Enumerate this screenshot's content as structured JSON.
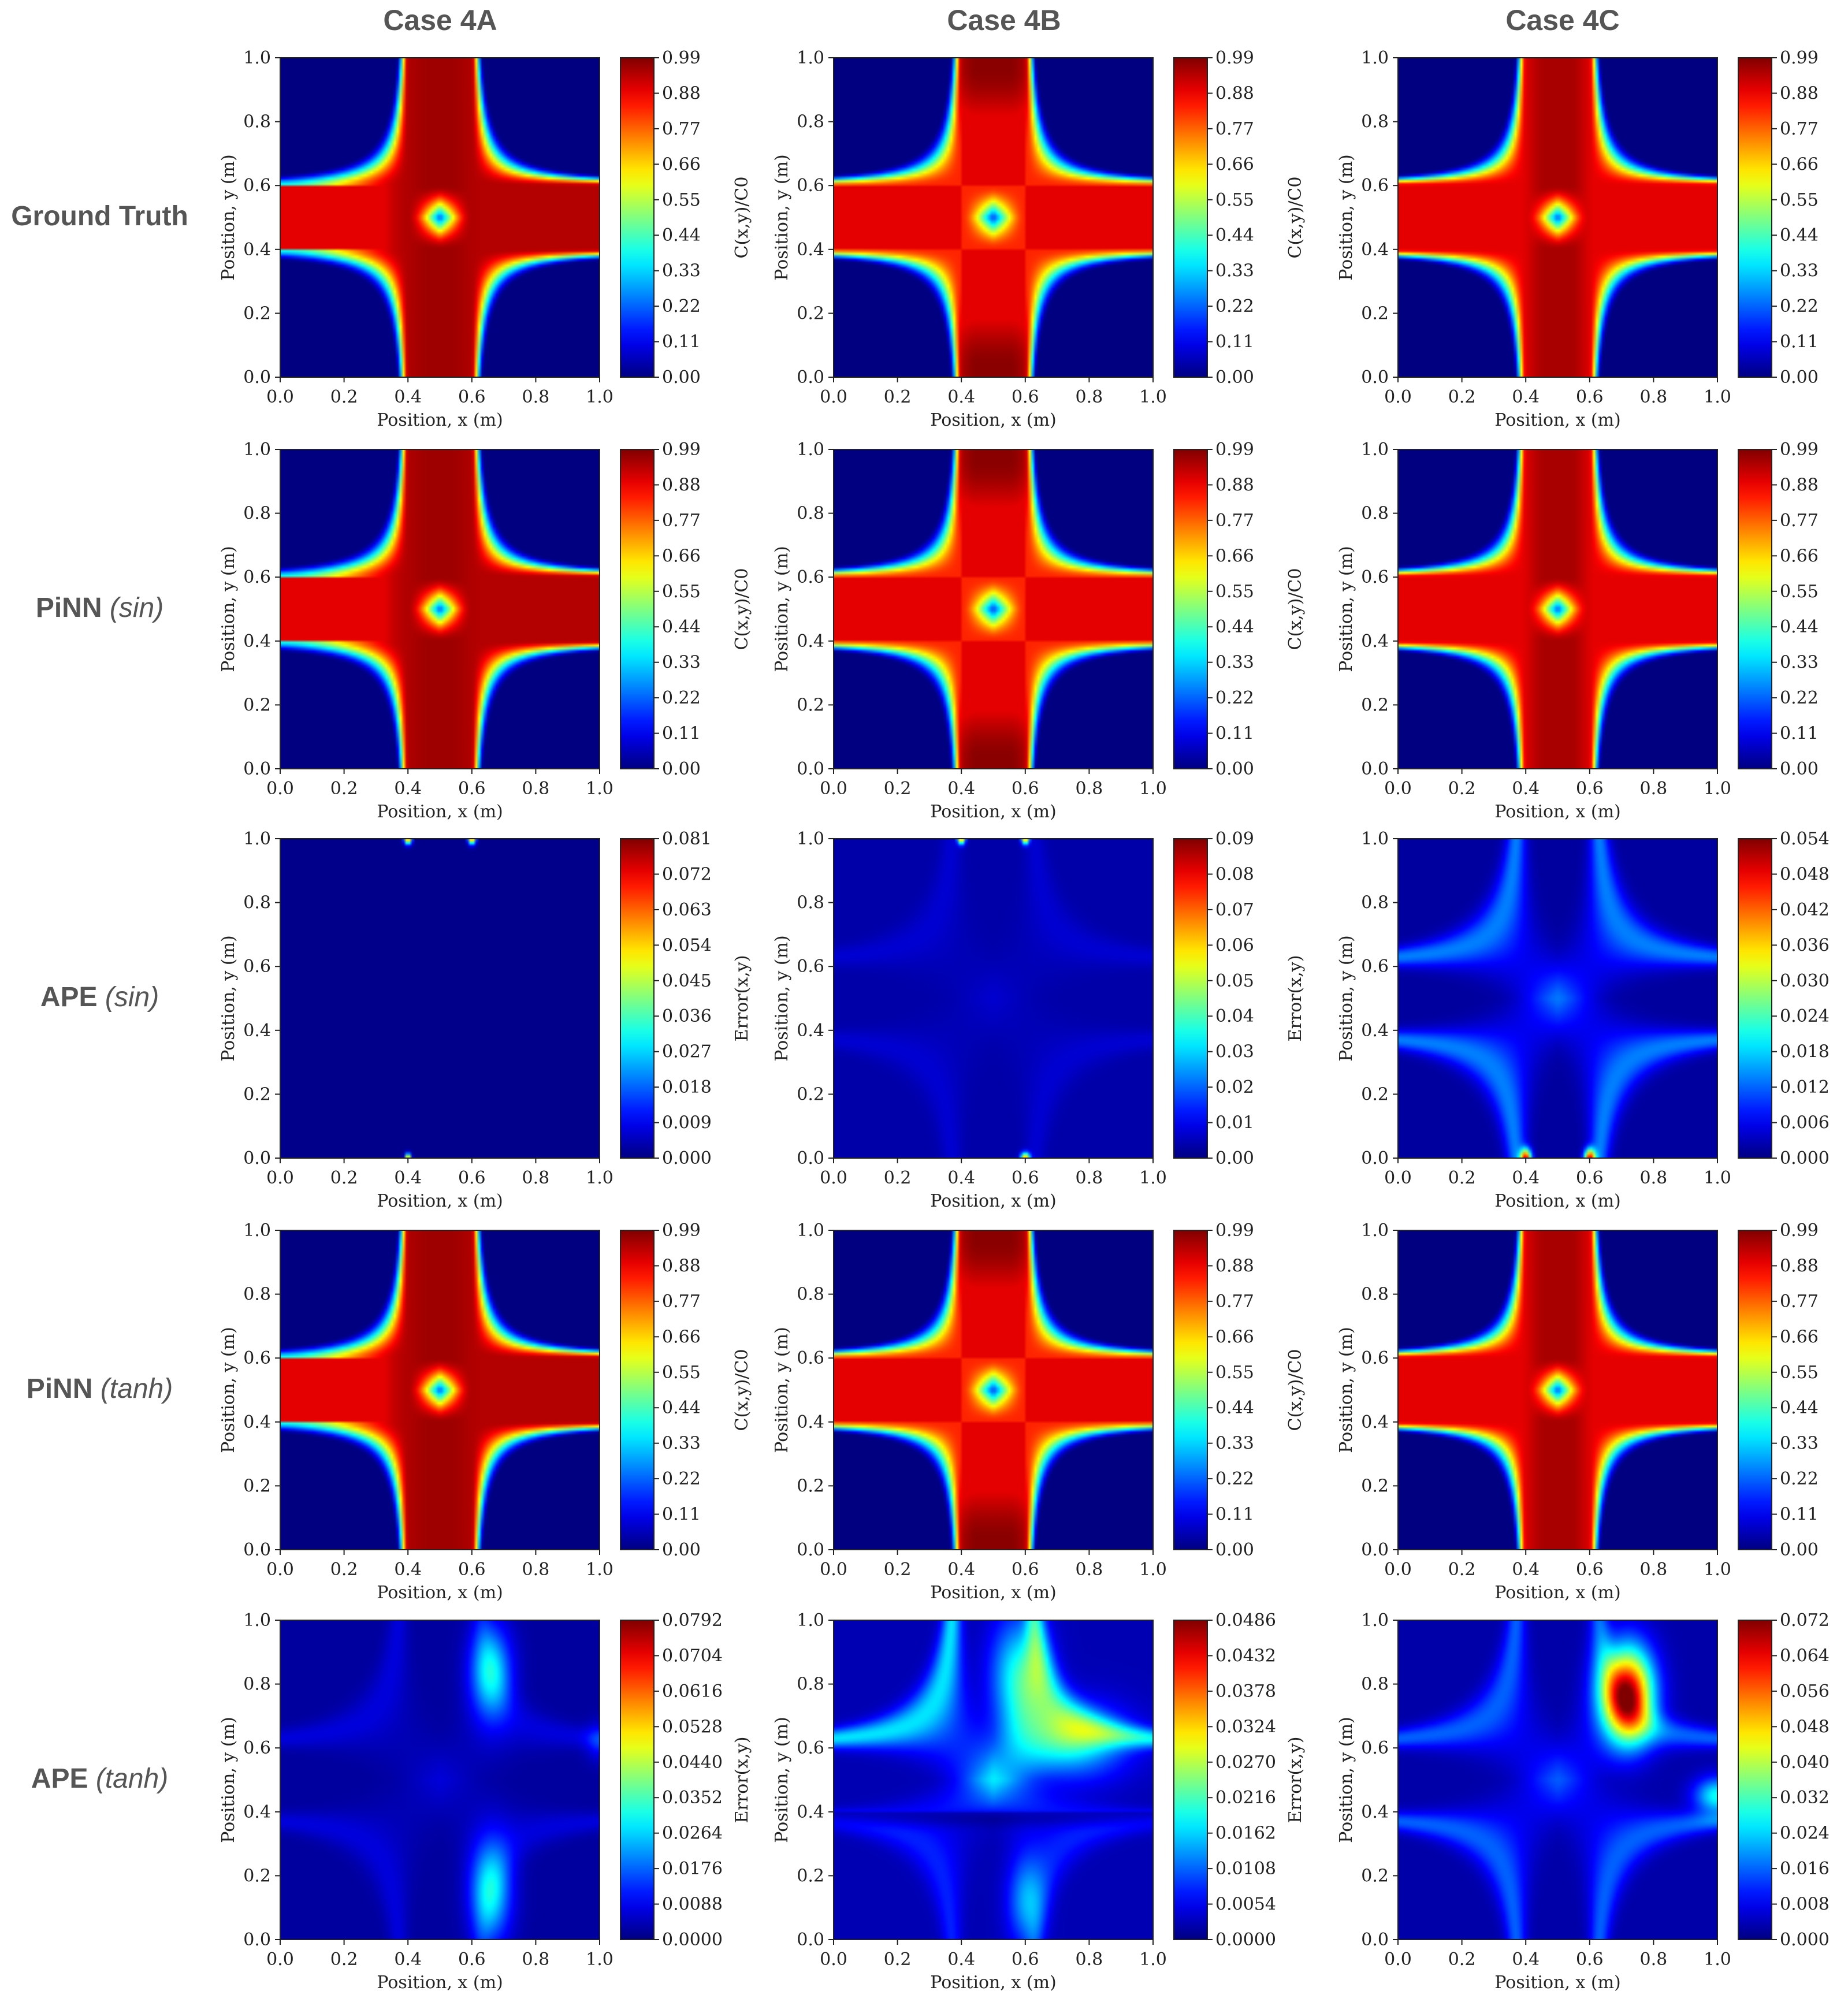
{
  "chart_data": {
    "type": "heatmap",
    "columns": [
      "Case 4A",
      "Case 4B",
      "Case 4C"
    ],
    "rows": [
      {
        "label": "Ground Truth",
        "activation": ""
      },
      {
        "label": "PiNN",
        "activation": "(sin)"
      },
      {
        "label": "APE",
        "activation": "(sin)"
      },
      {
        "label": "PiNN",
        "activation": "(tanh)"
      },
      {
        "label": "APE",
        "activation": "(tanh)"
      }
    ],
    "xlabel": "Position, x (m)",
    "ylabel": "Position, y (m)",
    "xlim": [
      0.0,
      1.0
    ],
    "ylim": [
      0.0,
      1.0
    ],
    "axis_ticks": [
      "0.0",
      "0.2",
      "0.4",
      "0.6",
      "0.8",
      "1.0"
    ],
    "colormap": "jet",
    "colorbar_labels": {
      "concentration": "C(x,y)/C0",
      "error": "Error(x,y)"
    },
    "panels": [
      [
        {
          "kind": "field",
          "variant": "A",
          "colorbar": "concentration",
          "vmax": 0.99,
          "ticks": [
            "0.00",
            "0.11",
            "0.22",
            "0.33",
            "0.44",
            "0.55",
            "0.66",
            "0.77",
            "0.88",
            "0.99"
          ]
        },
        {
          "kind": "field",
          "variant": "B",
          "colorbar": "concentration",
          "vmax": 0.99,
          "ticks": [
            "0.00",
            "0.11",
            "0.22",
            "0.33",
            "0.44",
            "0.55",
            "0.66",
            "0.77",
            "0.88",
            "0.99"
          ]
        },
        {
          "kind": "field",
          "variant": "C",
          "colorbar": "concentration",
          "vmax": 0.99,
          "ticks": [
            "0.00",
            "0.11",
            "0.22",
            "0.33",
            "0.44",
            "0.55",
            "0.66",
            "0.77",
            "0.88",
            "0.99"
          ]
        }
      ],
      [
        {
          "kind": "field",
          "variant": "A",
          "colorbar": "concentration",
          "vmax": 0.99,
          "ticks": [
            "0.00",
            "0.11",
            "0.22",
            "0.33",
            "0.44",
            "0.55",
            "0.66",
            "0.77",
            "0.88",
            "0.99"
          ]
        },
        {
          "kind": "field",
          "variant": "B",
          "colorbar": "concentration",
          "vmax": 0.99,
          "ticks": [
            "0.00",
            "0.11",
            "0.22",
            "0.33",
            "0.44",
            "0.55",
            "0.66",
            "0.77",
            "0.88",
            "0.99"
          ]
        },
        {
          "kind": "field",
          "variant": "C",
          "colorbar": "concentration",
          "vmax": 0.99,
          "ticks": [
            "0.00",
            "0.11",
            "0.22",
            "0.33",
            "0.44",
            "0.55",
            "0.66",
            "0.77",
            "0.88",
            "0.99"
          ]
        }
      ],
      [
        {
          "kind": "error",
          "variant": "sinA",
          "colorbar": "error",
          "vmax": 0.081,
          "ticks": [
            "0.000",
            "0.009",
            "0.018",
            "0.027",
            "0.036",
            "0.045",
            "0.054",
            "0.063",
            "0.072",
            "0.081"
          ]
        },
        {
          "kind": "error",
          "variant": "sinB",
          "colorbar": "error",
          "vmax": 0.09,
          "ticks": [
            "0.00",
            "0.01",
            "0.02",
            "0.03",
            "0.04",
            "0.05",
            "0.06",
            "0.07",
            "0.08",
            "0.09"
          ]
        },
        {
          "kind": "error",
          "variant": "sinC",
          "colorbar": "error",
          "vmax": 0.054,
          "ticks": [
            "0.000",
            "0.006",
            "0.012",
            "0.018",
            "0.024",
            "0.030",
            "0.036",
            "0.042",
            "0.048",
            "0.054"
          ]
        }
      ],
      [
        {
          "kind": "field",
          "variant": "A",
          "colorbar": "concentration",
          "vmax": 0.99,
          "ticks": [
            "0.00",
            "0.11",
            "0.22",
            "0.33",
            "0.44",
            "0.55",
            "0.66",
            "0.77",
            "0.88",
            "0.99"
          ]
        },
        {
          "kind": "field",
          "variant": "B",
          "colorbar": "concentration",
          "vmax": 0.99,
          "ticks": [
            "0.00",
            "0.11",
            "0.22",
            "0.33",
            "0.44",
            "0.55",
            "0.66",
            "0.77",
            "0.88",
            "0.99"
          ]
        },
        {
          "kind": "field",
          "variant": "C",
          "colorbar": "concentration",
          "vmax": 0.99,
          "ticks": [
            "0.00",
            "0.11",
            "0.22",
            "0.33",
            "0.44",
            "0.55",
            "0.66",
            "0.77",
            "0.88",
            "0.99"
          ]
        }
      ],
      [
        {
          "kind": "error",
          "variant": "tanhA",
          "colorbar": "error",
          "vmax": 0.0792,
          "ticks": [
            "0.0000",
            "0.0088",
            "0.0176",
            "0.0264",
            "0.0352",
            "0.0440",
            "0.0528",
            "0.0616",
            "0.0704",
            "0.0792"
          ]
        },
        {
          "kind": "error",
          "variant": "tanhB",
          "colorbar": "error",
          "vmax": 0.0486,
          "ticks": [
            "0.0000",
            "0.0054",
            "0.0108",
            "0.0162",
            "0.0216",
            "0.0270",
            "0.0324",
            "0.0378",
            "0.0432",
            "0.0486"
          ]
        },
        {
          "kind": "error",
          "variant": "tanhC",
          "colorbar": "error",
          "vmax": 0.072,
          "ticks": [
            "0.000",
            "0.008",
            "0.016",
            "0.024",
            "0.032",
            "0.040",
            "0.048",
            "0.056",
            "0.064",
            "0.072"
          ]
        }
      ]
    ]
  }
}
